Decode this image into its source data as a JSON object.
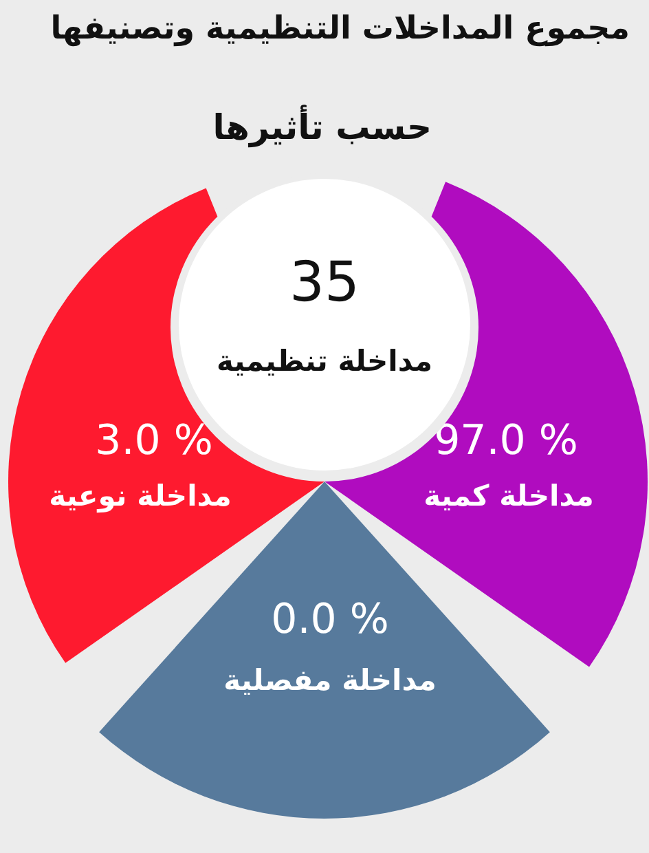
{
  "chart_data": {
    "type": "other",
    "title": "مجموع المداخلات التنظيمية وتصنيفها",
    "subtitle": "حسب تأثيرها",
    "categories": [
      "مداخلة نوعية",
      "مداخلة كمية",
      "مداخلة مفصلية"
    ],
    "values": [
      3.0,
      97.0,
      0.0
    ],
    "value_labels": [
      "3.0 %",
      "97.0 %",
      "0.0 %"
    ],
    "colors": [
      "#fe1a2f",
      "#b00cbf",
      "#577a9c"
    ],
    "annotations": [
      "35",
      "مداخلة تنظيمية"
    ]
  }
}
